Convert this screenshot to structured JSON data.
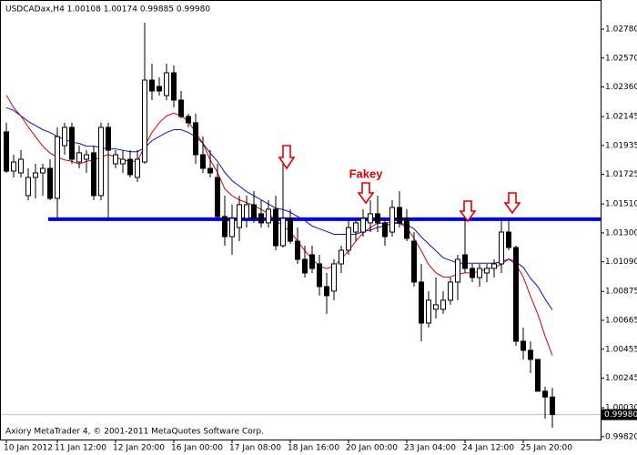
{
  "chart_data": {
    "type": "candlestick",
    "title": "USDCADax,H4  1.00108 1.00174 0.99885 0.99980",
    "footer": "Axiory MetaTrader 4, © 2001-2011 MetaQuotes Software Corp.",
    "annotation": "Fakey",
    "categories": [
      "10 Jan 2012",
      null,
      null,
      null,
      null,
      null,
      null,
      "11 Jan 12:00",
      null,
      null,
      null,
      null,
      null,
      null,
      null,
      "12 Jan 20:00",
      null,
      null,
      null,
      null,
      null,
      null,
      null,
      "16 Jan 00:00",
      null,
      null,
      null,
      null,
      null,
      null,
      null,
      "17 Jan 08:00",
      null,
      null,
      null,
      null,
      null,
      null,
      null,
      "18 Jan 16:00",
      null,
      null,
      null,
      null,
      null,
      null,
      null,
      "20 Jan 00:00",
      null,
      null,
      null,
      null,
      null,
      null,
      null,
      "23 Jan 04:00",
      null,
      null,
      null,
      null,
      null,
      null,
      null,
      "24 Jan 12:00",
      null,
      null,
      null,
      null,
      null,
      null,
      null,
      "25 Jan 20:00",
      null,
      null,
      null,
      null
    ],
    "open": [
      1.02034,
      1.01749,
      1.01736,
      1.01571,
      1.01703,
      1.01736,
      1.01769,
      1.01551,
      1.01934,
      1.02067,
      1.01815,
      1.01835,
      1.01882,
      1.01571,
      1.02067,
      1.01802,
      1.01802,
      1.01835,
      1.01703,
      1.01815,
      1.0241,
      1.02364,
      1.02298,
      1.02463,
      1.02265,
      1.02146,
      1.021,
      1.01868,
      1.01769,
      1.01703,
      1.01419,
      1.01273,
      1.01339,
      1.01406,
      1.01505,
      1.01439,
      1.01373,
      1.01472,
      1.01207,
      1.01406,
      1.0124,
      1.01108,
      1.01141,
      1.01075,
      1.0091,
      1.00877,
      1.01075,
      1.01174,
      1.01306,
      1.01306,
      1.01373,
      1.01439,
      1.01373,
      1.01306,
      1.01485,
      1.01406,
      1.0124,
      1.00943,
      1.00645,
      1.00745,
      1.00745,
      1.00811,
      1.00943,
      1.01141,
      1.01042,
      1.00976,
      1.01009,
      1.01042,
      1.01075,
      1.01306,
      1.01194,
      1.00513,
      1.00447,
      1.00381,
      1.0015,
      1.00108
    ],
    "high": [
      1.021,
      1.01868,
      1.01901,
      1.01769,
      1.01802,
      1.01802,
      1.01835,
      1.02067,
      1.021,
      1.021,
      1.01934,
      1.01901,
      1.01934,
      1.021,
      1.021,
      1.01901,
      1.01901,
      1.01901,
      1.01901,
      1.02827,
      1.02529,
      1.0243,
      1.02529,
      1.02516,
      1.02331,
      1.02166,
      1.02166,
      1.02,
      1.01901,
      1.01802,
      1.01571,
      1.01505,
      1.01571,
      1.01571,
      1.01604,
      1.01538,
      1.01538,
      1.01571,
      1.01802,
      1.01472,
      1.01339,
      1.01207,
      1.01207,
      1.01141,
      1.01009,
      1.01108,
      1.01207,
      1.01406,
      1.01406,
      1.01472,
      1.01538,
      1.01571,
      1.01406,
      1.01538,
      1.01604,
      1.01472,
      1.01306,
      1.01075,
      1.00877,
      1.00976,
      1.00877,
      1.00976,
      1.01141,
      1.01406,
      1.01075,
      1.01075,
      1.01075,
      1.01108,
      1.01406,
      1.01406,
      1.01207,
      1.00612,
      1.00513,
      1.00381,
      1.00183,
      1.00174
    ],
    "low": [
      1.01736,
      1.01703,
      1.01703,
      1.01538,
      1.01551,
      1.01571,
      1.01538,
      1.01392,
      1.01868,
      1.01802,
      1.01769,
      1.01736,
      1.01538,
      1.01538,
      1.01406,
      1.01769,
      1.01736,
      1.01703,
      1.0167,
      1.01802,
      1.02265,
      1.02298,
      1.02265,
      1.02212,
      1.02133,
      1.02067,
      1.01802,
      1.01736,
      1.01703,
      1.01406,
      1.01207,
      1.01141,
      1.0124,
      1.01339,
      1.01373,
      1.01339,
      1.01339,
      1.01174,
      1.01194,
      1.01221,
      1.01075,
      1.00976,
      1.01009,
      1.00844,
      1.00712,
      1.00811,
      1.01009,
      1.01141,
      1.0124,
      1.01273,
      1.01306,
      1.01306,
      1.01207,
      1.01273,
      1.01339,
      1.0124,
      1.0091,
      1.00513,
      1.00612,
      1.00678,
      1.00712,
      1.00778,
      1.00811,
      1.01009,
      1.00943,
      1.0091,
      1.00943,
      1.00976,
      1.01009,
      1.01174,
      1.0048,
      1.00381,
      1.00282,
      1.0015,
      0.99951,
      0.99885
    ],
    "close": [
      1.01749,
      1.01815,
      1.01835,
      1.01703,
      1.01736,
      1.01769,
      1.01551,
      1.02,
      1.02067,
      1.01835,
      1.01882,
      1.01868,
      1.01571,
      1.02067,
      1.01901,
      1.01868,
      1.01835,
      1.01723,
      1.01835,
      1.0241,
      1.02331,
      1.02331,
      1.02463,
      1.02265,
      1.02146,
      1.021,
      1.01868,
      1.01769,
      1.01736,
      1.01419,
      1.01273,
      1.01406,
      1.01505,
      1.01505,
      1.01406,
      1.01373,
      1.01472,
      1.01207,
      1.01406,
      1.0124,
      1.01108,
      1.01009,
      1.01042,
      1.0091,
      1.00844,
      1.01075,
      1.01174,
      1.01339,
      1.01373,
      1.01406,
      1.01439,
      1.01373,
      1.01273,
      1.01485,
      1.01373,
      1.0126,
      1.00943,
      1.00645,
      1.00811,
      1.00778,
      1.00811,
      1.00943,
      1.01108,
      1.01042,
      1.00976,
      1.01042,
      1.01042,
      1.01075,
      1.01306,
      1.01194,
      1.00513,
      1.00447,
      1.00381,
      1.0015,
      1.00108,
      0.9998
    ],
    "bull_color": "#ffffff",
    "bear_color": "#000000",
    "lines": [
      {
        "color": "#e00000",
        "values": [
          1.023,
          1.0221,
          1.0215,
          1.0207,
          1.02,
          1.0193,
          1.0188,
          1.0185,
          1.0183,
          1.0182,
          1.018,
          1.0182,
          1.0183,
          1.0185,
          1.0187,
          1.0185,
          1.0183,
          1.0182,
          1.0182,
          1.0193,
          1.0203,
          1.021,
          1.0215,
          1.0217,
          1.0215,
          1.0211,
          1.0203,
          1.0195,
          1.0183,
          1.0174,
          1.0162,
          1.0157,
          1.0154,
          1.0152,
          1.015,
          1.0147,
          1.0144,
          1.0139,
          1.0135,
          1.0131,
          1.0124,
          1.0117,
          1.0111,
          1.0106,
          1.0104,
          1.0106,
          1.0111,
          1.0117,
          1.0124,
          1.013,
          1.0134,
          1.0137,
          1.0137,
          1.0138,
          1.0137,
          1.0134,
          1.0126,
          1.0117,
          1.0107,
          1.0101,
          1.0098,
          1.0098,
          1.01,
          1.0101,
          1.0101,
          1.0102,
          1.0104,
          1.0105,
          1.0107,
          1.0111,
          1.0107,
          1.0098,
          1.0084,
          1.0071,
          1.0055,
          1.0041
        ]
      },
      {
        "color": "#1010c8",
        "values": [
          1.0221,
          1.0219,
          1.0215,
          1.0211,
          1.0208,
          1.0205,
          1.0203,
          1.02,
          1.0198,
          1.0196,
          1.0195,
          1.0193,
          1.0193,
          1.0192,
          1.0191,
          1.0191,
          1.019,
          1.0189,
          1.0189,
          1.0192,
          1.0197,
          1.02,
          1.0203,
          1.0205,
          1.0205,
          1.0203,
          1.02,
          1.0195,
          1.0188,
          1.0182,
          1.0174,
          1.0168,
          1.0164,
          1.016,
          1.0157,
          1.0154,
          1.0151,
          1.0148,
          1.0147,
          1.0145,
          1.0142,
          1.0139,
          1.0135,
          1.0133,
          1.0131,
          1.0129,
          1.0129,
          1.0129,
          1.0129,
          1.0131,
          1.0132,
          1.0134,
          1.0135,
          1.0137,
          1.0137,
          1.0136,
          1.0133,
          1.0127,
          1.0122,
          1.0117,
          1.0112,
          1.011,
          1.0108,
          1.0108,
          1.0108,
          1.0108,
          1.0108,
          1.0108,
          1.0109,
          1.0111,
          1.0109,
          1.0105,
          1.0097,
          1.0091,
          1.0082,
          1.0074
        ]
      }
    ],
    "level": {
      "value": 1.014,
      "color": "#0000ff",
      "start": 6
    },
    "price_label": {
      "value": 0.9998,
      "label": "0.99980"
    },
    "ylim": [
      0.99799,
      1.02992
    ],
    "yticks": [
      {
        "value": 0.9982,
        "label": "0.99820"
      },
      {
        "value": 1.0003,
        "label": "1.00030"
      },
      {
        "value": 1.00245,
        "label": "1.00245"
      },
      {
        "value": 1.00455,
        "label": "1.00455"
      },
      {
        "value": 1.00665,
        "label": "1.00665"
      },
      {
        "value": 1.00875,
        "label": "1.00875"
      },
      {
        "value": 1.0109,
        "label": "1.01090"
      },
      {
        "value": 1.013,
        "label": "1.01300"
      },
      {
        "value": 1.0151,
        "label": "1.01510"
      },
      {
        "value": 1.01725,
        "label": "1.01725"
      },
      {
        "value": 1.01935,
        "label": "1.01935"
      },
      {
        "value": 1.02145,
        "label": "1.02145"
      },
      {
        "value": 1.0236,
        "label": "1.02360"
      },
      {
        "value": 1.0257,
        "label": "1.02570"
      },
      {
        "value": 1.0278,
        "label": "1.02780"
      }
    ]
  }
}
